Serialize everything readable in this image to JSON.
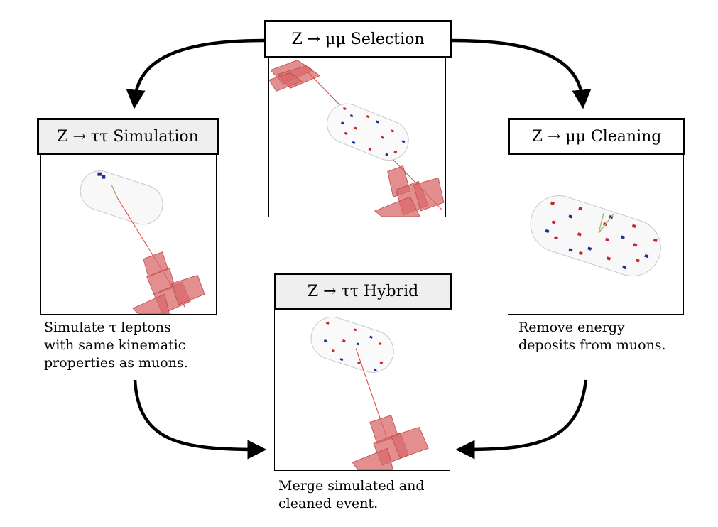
{
  "stages": {
    "selection": {
      "title": "Z → μμ  Selection"
    },
    "simulation": {
      "title": "Z → ττ  Simulation",
      "caption": [
        "Simulate τ leptons",
        "with same kinematic",
        "properties as muons."
      ]
    },
    "cleaning": {
      "title": "Z → μμ  Cleaning",
      "caption": [
        "Remove energy",
        "deposits from muons."
      ]
    },
    "hybrid": {
      "title": "Z → ττ  Hybrid",
      "caption": [
        "Merge simulated and",
        "cleaned event."
      ]
    }
  },
  "colors": {
    "deposit_red": "#c0262a",
    "deposit_blue": "#1f2f8f",
    "muon_block": "#d9686a",
    "track": "#e04040"
  }
}
